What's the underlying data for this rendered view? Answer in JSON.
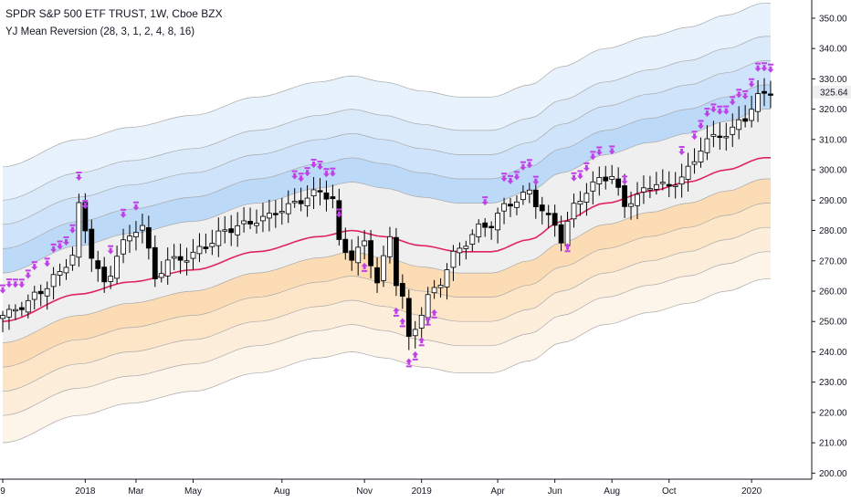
{
  "header": {
    "title": "SPDR S&P 500 ETF TRUST, 1W, Cboe BZX",
    "indicator": "YJ Mean Reversion (28, 3, 1, 2, 4, 8, 16)"
  },
  "colors": {
    "background": "#ffffff",
    "mean_line": "#e0245e",
    "band_outline": "#a9a9a9",
    "marker": "#c040e8",
    "candle_up": "#ffffff",
    "candle_down": "#000000",
    "upper_band_fills": [
      "#e8f2fc",
      "#dbeafb",
      "#cfe3fa",
      "#bcd9f8"
    ],
    "lower_band_fills": [
      "#fcdcb4",
      "#fde6c8",
      "#fdeedc",
      "#fef5ea"
    ],
    "neutral_fill": "#efefef",
    "last_price_label": "#f0f0f0"
  },
  "chart_data": {
    "type": "candlestick",
    "title": "SPDR S&P 500 ETF TRUST, 1W, Cboe BZX",
    "timeframe": "1W",
    "ylim": [
      198,
      356
    ],
    "grid": false,
    "last_price": "325.64",
    "x_tick_labels": [
      "9",
      "2018",
      "Mar",
      "May",
      "Aug",
      "Nov",
      "2019",
      "Apr",
      "Jun",
      "Aug",
      "Oct",
      "2020"
    ],
    "x_ticks": [
      {
        "label": "9",
        "bar": 0
      },
      {
        "label": "2018",
        "bar": 13
      },
      {
        "label": "Mar",
        "bar": 21
      },
      {
        "label": "May",
        "bar": 30
      },
      {
        "label": "Aug",
        "bar": 44
      },
      {
        "label": "Nov",
        "bar": 57
      },
      {
        "label": "2019",
        "bar": 66
      },
      {
        "label": "Apr",
        "bar": 78
      },
      {
        "label": "Jun",
        "bar": 87
      },
      {
        "label": "Aug",
        "bar": 96
      },
      {
        "label": "Oct",
        "bar": 105
      },
      {
        "label": "2020",
        "bar": 118
      }
    ],
    "y_ticks": [
      200,
      210,
      220,
      230,
      240,
      250,
      260,
      270,
      280,
      290,
      300,
      310,
      320,
      330,
      340,
      350
    ],
    "y_tick_labels": [
      "200.00",
      "210.00",
      "220.00",
      "230.00",
      "240.00",
      "250.00",
      "260.00",
      "270.00",
      "280.00",
      "290.00",
      "300.00",
      "310.00",
      "320.00",
      "330.00",
      "340.00",
      "350.00"
    ],
    "mean_knots": [
      [
        0,
        250
      ],
      [
        12,
        259
      ],
      [
        20,
        263
      ],
      [
        30,
        267
      ],
      [
        40,
        273
      ],
      [
        50,
        278
      ],
      [
        55,
        280
      ],
      [
        60,
        278
      ],
      [
        66,
        275
      ],
      [
        72,
        273
      ],
      [
        77,
        273
      ],
      [
        83,
        277
      ],
      [
        88,
        283
      ],
      [
        95,
        289
      ],
      [
        102,
        293
      ],
      [
        108,
        296
      ],
      [
        114,
        300
      ],
      [
        120,
        304
      ]
    ],
    "band_offsets": {
      "upper": [
        51,
        40,
        32,
        24,
        16
      ],
      "mean": 0,
      "lower": [
        -7,
        -15,
        -23,
        -31,
        -40
      ]
    },
    "ohlc_knots": [
      [
        0,
        252
      ],
      [
        3,
        255
      ],
      [
        6,
        260
      ],
      [
        9,
        266
      ],
      [
        11,
        272
      ],
      [
        12,
        288
      ],
      [
        14,
        272
      ],
      [
        16,
        262
      ],
      [
        19,
        276
      ],
      [
        22,
        282
      ],
      [
        24,
        264
      ],
      [
        26,
        270
      ],
      [
        29,
        271
      ],
      [
        32,
        275
      ],
      [
        35,
        280
      ],
      [
        38,
        282
      ],
      [
        41,
        284
      ],
      [
        44,
        287
      ],
      [
        47,
        290
      ],
      [
        50,
        293
      ],
      [
        52,
        290
      ],
      [
        53,
        276
      ],
      [
        55,
        271
      ],
      [
        57,
        276
      ],
      [
        59,
        263
      ],
      [
        61,
        278
      ],
      [
        62,
        263
      ],
      [
        63,
        258
      ],
      [
        64,
        244
      ],
      [
        65,
        248
      ],
      [
        67,
        258
      ],
      [
        69,
        263
      ],
      [
        71,
        272
      ],
      [
        73,
        276
      ],
      [
        75,
        281
      ],
      [
        77,
        282
      ],
      [
        79,
        288
      ],
      [
        81,
        290
      ],
      [
        83,
        293
      ],
      [
        84,
        289
      ],
      [
        86,
        284
      ],
      [
        87,
        282
      ],
      [
        88,
        277
      ],
      [
        90,
        288
      ],
      [
        92,
        293
      ],
      [
        94,
        297
      ],
      [
        96,
        298
      ],
      [
        97,
        293
      ],
      [
        98,
        288
      ],
      [
        99,
        290
      ],
      [
        101,
        293
      ],
      [
        103,
        296
      ],
      [
        105,
        294
      ],
      [
        107,
        298
      ],
      [
        108,
        300
      ],
      [
        111,
        310
      ],
      [
        114,
        312
      ],
      [
        117,
        317
      ],
      [
        119,
        324
      ],
      [
        121,
        326
      ]
    ],
    "sell_signal_bars": [
      0,
      1,
      2,
      3,
      4,
      5,
      7,
      8,
      9,
      10,
      11,
      12,
      13,
      17,
      19,
      21,
      46,
      47,
      48,
      49,
      50,
      51,
      52,
      53,
      76,
      79,
      80,
      81,
      82,
      83,
      84,
      90,
      91,
      92,
      93,
      94,
      96,
      98,
      107,
      109,
      110,
      111,
      112,
      113,
      114,
      115,
      116,
      117,
      118,
      119,
      120,
      121
    ],
    "buy_signal_bars": [
      57,
      62,
      63,
      64,
      65,
      66,
      67,
      68,
      89
    ]
  }
}
